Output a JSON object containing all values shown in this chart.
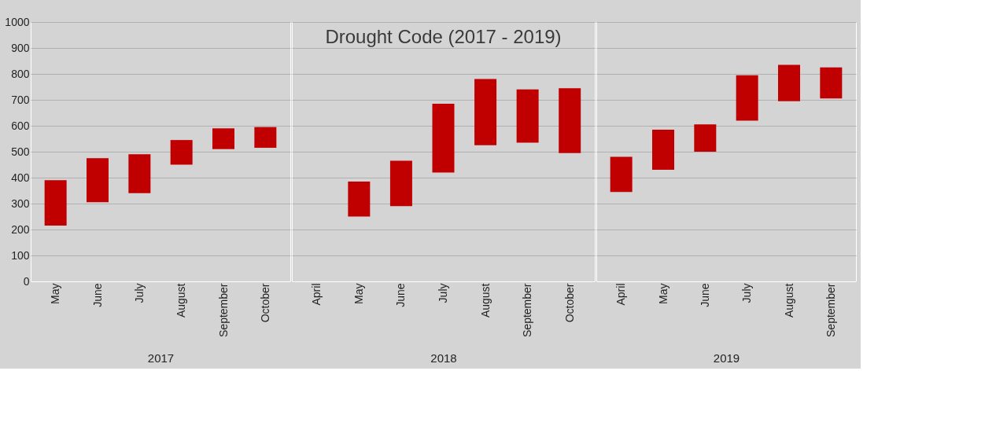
{
  "chart_data": [
    {
      "type": "bar",
      "xlabel": "2017",
      "categories": [
        "May",
        "June",
        "July",
        "August",
        "September",
        "October"
      ],
      "base": [
        215,
        305,
        340,
        450,
        510,
        515
      ],
      "values": [
        175,
        170,
        150,
        95,
        80,
        80
      ],
      "color": "#c00000",
      "ylim": [
        0,
        1000
      ],
      "yticks": [
        0,
        100,
        200,
        300,
        400,
        500,
        600,
        700,
        800,
        900,
        1000
      ],
      "grid": "y"
    },
    {
      "type": "bar",
      "title": "Drought Code (2017 - 2019)",
      "xlabel": "2018",
      "categories": [
        "April",
        "May",
        "June",
        "July",
        "August",
        "September",
        "October"
      ],
      "base": [
        null,
        250,
        290,
        420,
        525,
        535,
        495
      ],
      "values": [
        null,
        135,
        175,
        265,
        255,
        205,
        250
      ],
      "color": "#c00000",
      "ylim": [
        0,
        1000
      ],
      "yticks": [
        0,
        100,
        200,
        300,
        400,
        500,
        600,
        700,
        800,
        900,
        1000
      ],
      "grid": "y",
      "tick_labels": "x"
    },
    {
      "type": "bar",
      "xlabel": "2019",
      "categories": [
        "April",
        "May",
        "June",
        "July",
        "August",
        "September"
      ],
      "base": [
        345,
        430,
        500,
        620,
        695,
        705
      ],
      "values": [
        135,
        155,
        105,
        175,
        140,
        120
      ],
      "color": "#c00000",
      "ylim": [
        0,
        1000
      ],
      "yticks": [
        0,
        100,
        200,
        300,
        400,
        500,
        600,
        700,
        800,
        900,
        1000
      ],
      "grid": "y",
      "tick_labels": "x"
    }
  ]
}
